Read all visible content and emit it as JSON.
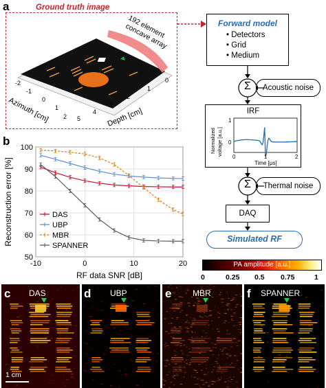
{
  "panel_a": {
    "letter": "a",
    "ground_truth_label": "Ground truth image",
    "array_label": "192 element concave array",
    "array_label_line1": "192 element",
    "array_label_line2": "concave array",
    "azimuth_label": "Azimuth [cm]",
    "depth_label": "Depth [cm]",
    "azimuth_ticks": [
      "-2",
      "-1",
      "0",
      "1",
      "2"
    ],
    "depth_ticks": [
      "0",
      "1",
      "2",
      "3",
      "4",
      "5"
    ]
  },
  "flow": {
    "forward_model_title": "Forward model",
    "forward_model_items": [
      "Detectors",
      "Grid",
      "Medium"
    ],
    "sum_symbol": "Σ",
    "acoustic_noise": "Acoustic noise",
    "irf_title": "IRF",
    "irf_ylabel_line1": "Normalized",
    "irf_ylabel_line2": "voltage [a.u.]",
    "irf_xlabel": "Time [μs]",
    "irf_yticks": [
      "1",
      "0"
    ],
    "irf_xticks": [
      "0",
      "1",
      "2"
    ],
    "thermal_noise": "Thermal noise",
    "daq": "DAQ",
    "simulated_rf": "Simulated RF"
  },
  "panel_b": {
    "letter": "b"
  },
  "chart_data": {
    "type": "line",
    "xlabel": "RF data SNR [dB]",
    "ylabel": "Reconstruction error [%]",
    "xlim": [
      -10,
      20
    ],
    "ylim": [
      50,
      100
    ],
    "xticks": [
      "-10",
      "0",
      "10",
      "20"
    ],
    "yticks": [
      "50",
      "60",
      "70",
      "80",
      "90",
      "100"
    ],
    "legend_position": "bottom-left",
    "x": [
      -9,
      -6,
      -3,
      0,
      3,
      6,
      9,
      12,
      15,
      18,
      20
    ],
    "series": [
      {
        "name": "DAS",
        "color": "#c8102e",
        "dash": "solid",
        "values": [
          90.8,
          88.3,
          86.2,
          84.6,
          83.5,
          82.7,
          82.3,
          82.0,
          81.9,
          81.8,
          81.8
        ]
      },
      {
        "name": "UBP",
        "color": "#5b8fd6",
        "dash": "solid",
        "values": [
          96.2,
          94.4,
          92.5,
          90.6,
          88.9,
          87.6,
          86.8,
          86.3,
          85.9,
          85.7,
          85.6
        ]
      },
      {
        "name": "MBR",
        "color": "#e07b1a",
        "dash": "dashed",
        "values": [
          98.5,
          98.2,
          97.6,
          96.8,
          95.0,
          92.0,
          87.0,
          81.5,
          76.0,
          71.5,
          69.5
        ]
      },
      {
        "name": "SPANNER",
        "color": "#5a5a5a",
        "dash": "solid",
        "values": [
          92.0,
          86.5,
          80.0,
          73.5,
          67.0,
          62.0,
          58.8,
          57.5,
          57.2,
          57.1,
          57.1
        ]
      }
    ]
  },
  "colorbar": {
    "label": "PA amplitude [a.u.]",
    "ticks": [
      "0",
      "0.25",
      "0.5",
      "0.75",
      "1"
    ]
  },
  "images": [
    {
      "letter": "c",
      "label": "DAS"
    },
    {
      "letter": "d",
      "label": "UBP"
    },
    {
      "letter": "e",
      "label": "MBR"
    },
    {
      "letter": "f",
      "label": "SPANNER"
    }
  ],
  "scalebar_label": "1 cm"
}
